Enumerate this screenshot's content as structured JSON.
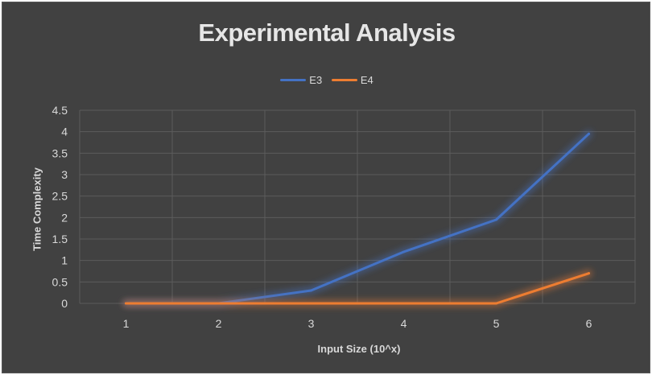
{
  "chart_data": {
    "type": "line",
    "title": "Experimental Analysis",
    "xlabel": "Input Size (10^x)",
    "ylabel": "Time Complexity",
    "categories": [
      "1",
      "2",
      "3",
      "4",
      "5",
      "6"
    ],
    "yticks": [
      "0",
      "0.5",
      "1",
      "1.5",
      "2",
      "2.5",
      "3",
      "3.5",
      "4",
      "4.5"
    ],
    "ylim": [
      0,
      4.5
    ],
    "grid": true,
    "legend_position": "top",
    "series": [
      {
        "name": "E3",
        "color": "#4472c4",
        "values": [
          0,
          0,
          0.3,
          1.2,
          1.95,
          3.95
        ]
      },
      {
        "name": "E4",
        "color": "#ed7d31",
        "values": [
          0,
          0,
          0,
          0,
          0,
          0.7
        ]
      }
    ],
    "background": "#414141",
    "grid_color": "#5c5c5c"
  }
}
